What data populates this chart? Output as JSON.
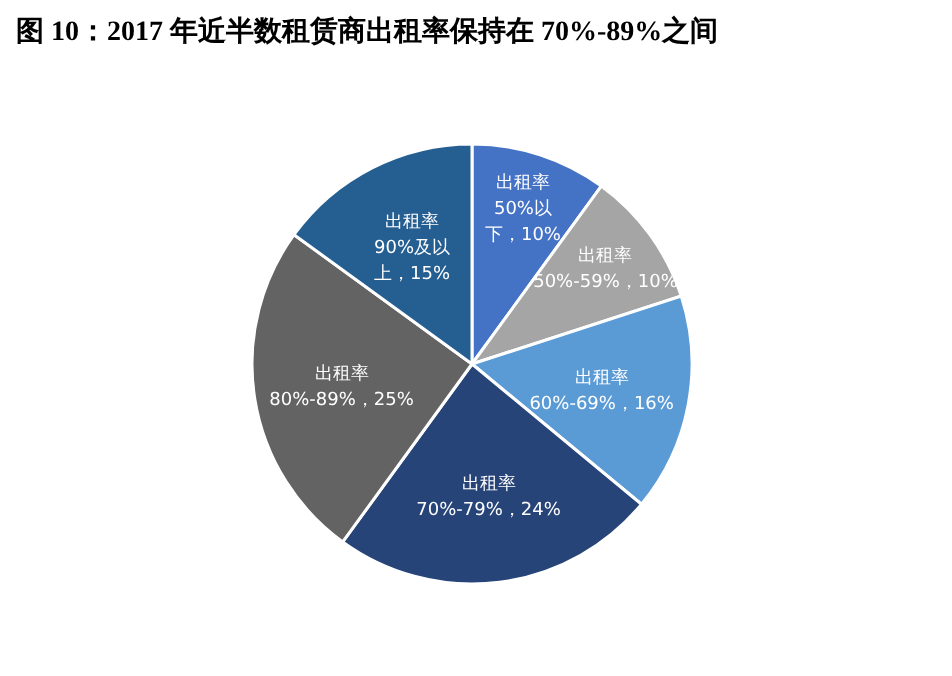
{
  "chart_data": {
    "type": "pie",
    "title": "图 10：2017 年近半数租赁商出租率保持在 70%-89%之间",
    "categories": [
      "出租率50%以下",
      "出租率50%-59%",
      "出租率60%-69%",
      "出租率70%-79%",
      "出租率80%-89%",
      "出租率90%及以上"
    ],
    "values": [
      10,
      10,
      16,
      24,
      25,
      15
    ],
    "value_labels": [
      "10%",
      "10%",
      "16%",
      "24%",
      "25%",
      "15%"
    ],
    "colors": [
      "#4472c4",
      "#a5a5a5",
      "#5b9bd5",
      "#264478",
      "#636363",
      "#255e91"
    ]
  }
}
